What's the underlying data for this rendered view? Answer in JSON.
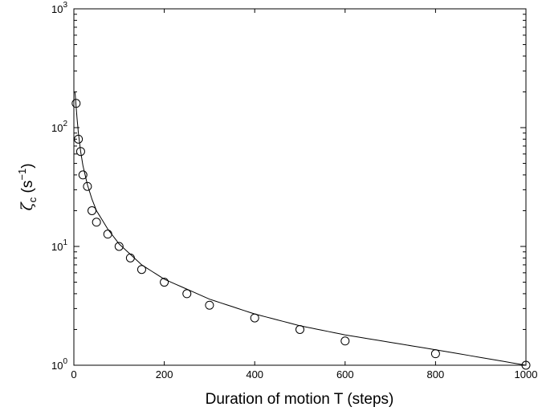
{
  "chart_data": {
    "type": "scatter",
    "title": "",
    "xlabel": "Duration of motion T (steps)",
    "ylabel": {
      "base": "ζ",
      "subscript": "c",
      "open": " (s",
      "superscript": "−1",
      "close": ")"
    },
    "xlim": [
      0,
      1000
    ],
    "ylim": [
      1,
      1000
    ],
    "yscale": "log",
    "grid": false,
    "x_ticks": [
      "0",
      "200",
      "400",
      "600",
      "800",
      "1000"
    ],
    "y_ticks": [
      {
        "base": "10",
        "exp": "0"
      },
      {
        "base": "10",
        "exp": "1"
      },
      {
        "base": "10",
        "exp": "2"
      },
      {
        "base": "10",
        "exp": "3"
      }
    ],
    "series": [
      {
        "kind": "markers",
        "marker": "open-circle",
        "x": [
          5,
          10,
          15,
          20,
          30,
          40,
          50,
          75,
          100,
          125,
          150,
          200,
          250,
          300,
          400,
          500,
          600,
          800,
          1000
        ],
        "y": [
          160,
          80,
          63,
          40,
          32,
          20,
          16,
          12.7,
          10,
          8,
          6.4,
          5,
          4,
          3.2,
          2.5,
          2,
          1.6,
          1.25,
          1
        ]
      },
      {
        "kind": "line",
        "x": [
          2,
          3,
          5,
          7,
          10,
          15,
          20,
          30,
          40,
          50,
          75,
          100,
          150,
          200,
          300,
          400,
          500,
          600,
          800,
          1000
        ],
        "y": [
          200,
          190,
          150,
          120,
          90,
          63,
          48,
          33,
          25,
          20,
          14,
          10.5,
          7,
          5.3,
          3.6,
          2.7,
          2.15,
          1.8,
          1.35,
          1.0
        ]
      }
    ]
  }
}
